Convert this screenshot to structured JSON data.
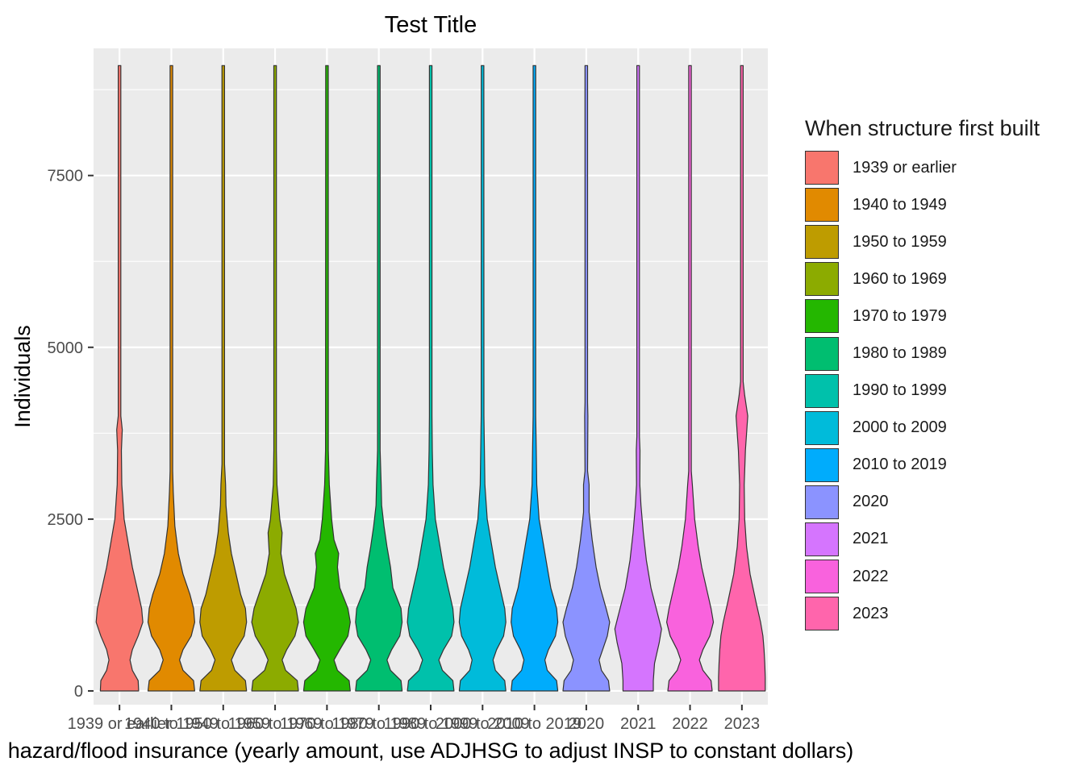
{
  "chart_data": {
    "type": "violin",
    "title": "Test Title",
    "xlabel": "hazard/flood insurance (yearly amount, use ADJHSG to adjust INSP to constant dollars)",
    "ylabel": "Individuals",
    "ylim": [
      -200,
      9350
    ],
    "yticks": [
      0,
      2500,
      5000,
      7500
    ],
    "legend_title": "When structure first built",
    "legend_position": "right",
    "grid": true,
    "categories": [
      "1939 or earlier",
      "1940 to 1949",
      "1950 to 1959",
      "1960 to 1969",
      "1970 to 1979",
      "1980 to 1989",
      "1990 to 1999",
      "2000 to 2009",
      "2010 to 2019",
      "2020",
      "2021",
      "2022",
      "2023"
    ],
    "colors": [
      "#F8766D",
      "#E18A00",
      "#BE9C00",
      "#8CAB00",
      "#24B700",
      "#00BE70",
      "#00C1AB",
      "#00BBDA",
      "#00ACFC",
      "#8B93FF",
      "#D575FE",
      "#F962DD",
      "#FF65AC"
    ],
    "y_max": 9100,
    "density_profiles": [
      [
        [
          0,
          0.82
        ],
        [
          150,
          0.8
        ],
        [
          300,
          0.55
        ],
        [
          450,
          0.45
        ],
        [
          600,
          0.55
        ],
        [
          800,
          0.8
        ],
        [
          1000,
          1
        ],
        [
          1200,
          0.95
        ],
        [
          1500,
          0.75
        ],
        [
          1800,
          0.55
        ],
        [
          2100,
          0.4
        ],
        [
          2500,
          0.2
        ],
        [
          3000,
          0.1
        ],
        [
          3500,
          0.08
        ],
        [
          3800,
          0.12
        ],
        [
          4000,
          0.03
        ],
        [
          5000,
          0.05
        ],
        [
          5200,
          0.02
        ],
        [
          9100,
          0.02
        ]
      ],
      [
        [
          0,
          1
        ],
        [
          150,
          0.95
        ],
        [
          300,
          0.5
        ],
        [
          450,
          0.35
        ],
        [
          600,
          0.5
        ],
        [
          800,
          0.85
        ],
        [
          1000,
          1
        ],
        [
          1200,
          0.95
        ],
        [
          1400,
          0.8
        ],
        [
          1700,
          0.5
        ],
        [
          2000,
          0.3
        ],
        [
          2400,
          0.15
        ],
        [
          2900,
          0.08
        ],
        [
          3200,
          0.02
        ],
        [
          9100,
          0.02
        ]
      ],
      [
        [
          0,
          1
        ],
        [
          150,
          0.95
        ],
        [
          300,
          0.5
        ],
        [
          450,
          0.35
        ],
        [
          600,
          0.55
        ],
        [
          800,
          0.9
        ],
        [
          1000,
          1
        ],
        [
          1200,
          0.95
        ],
        [
          1400,
          0.75
        ],
        [
          1700,
          0.55
        ],
        [
          2000,
          0.35
        ],
        [
          2300,
          0.22
        ],
        [
          2700,
          0.12
        ],
        [
          3000,
          0.1
        ],
        [
          3300,
          0.04
        ],
        [
          9100,
          0.02
        ]
      ],
      [
        [
          0,
          1
        ],
        [
          150,
          0.95
        ],
        [
          300,
          0.45
        ],
        [
          450,
          0.3
        ],
        [
          600,
          0.5
        ],
        [
          800,
          0.85
        ],
        [
          1000,
          1
        ],
        [
          1200,
          0.9
        ],
        [
          1400,
          0.7
        ],
        [
          1700,
          0.4
        ],
        [
          2000,
          0.25
        ],
        [
          2300,
          0.3
        ],
        [
          2500,
          0.2
        ],
        [
          3000,
          0.08
        ],
        [
          3500,
          0.05
        ],
        [
          9100,
          0.02
        ]
      ],
      [
        [
          0,
          1
        ],
        [
          150,
          0.95
        ],
        [
          300,
          0.45
        ],
        [
          450,
          0.3
        ],
        [
          600,
          0.55
        ],
        [
          800,
          0.9
        ],
        [
          1000,
          1
        ],
        [
          1200,
          0.9
        ],
        [
          1500,
          0.55
        ],
        [
          1800,
          0.45
        ],
        [
          2000,
          0.5
        ],
        [
          2200,
          0.3
        ],
        [
          2500,
          0.2
        ],
        [
          3000,
          0.1
        ],
        [
          3500,
          0.06
        ],
        [
          9100,
          0.02
        ]
      ],
      [
        [
          0,
          1
        ],
        [
          150,
          0.95
        ],
        [
          300,
          0.5
        ],
        [
          450,
          0.35
        ],
        [
          600,
          0.55
        ],
        [
          800,
          0.9
        ],
        [
          1000,
          1
        ],
        [
          1200,
          0.95
        ],
        [
          1500,
          0.6
        ],
        [
          1800,
          0.5
        ],
        [
          2100,
          0.35
        ],
        [
          2400,
          0.22
        ],
        [
          2700,
          0.12
        ],
        [
          3000,
          0.1
        ],
        [
          3500,
          0.05
        ],
        [
          9100,
          0.02
        ]
      ],
      [
        [
          0,
          1
        ],
        [
          150,
          0.95
        ],
        [
          300,
          0.5
        ],
        [
          450,
          0.35
        ],
        [
          600,
          0.55
        ],
        [
          800,
          0.9
        ],
        [
          1000,
          1
        ],
        [
          1200,
          0.95
        ],
        [
          1500,
          0.75
        ],
        [
          1800,
          0.55
        ],
        [
          2100,
          0.4
        ],
        [
          2500,
          0.2
        ],
        [
          3000,
          0.1
        ],
        [
          3500,
          0.07
        ],
        [
          4000,
          0.05
        ],
        [
          9100,
          0.03
        ]
      ],
      [
        [
          0,
          1
        ],
        [
          150,
          0.95
        ],
        [
          300,
          0.55
        ],
        [
          450,
          0.45
        ],
        [
          600,
          0.6
        ],
        [
          800,
          0.9
        ],
        [
          1000,
          1
        ],
        [
          1200,
          0.95
        ],
        [
          1500,
          0.75
        ],
        [
          1800,
          0.55
        ],
        [
          2100,
          0.4
        ],
        [
          2500,
          0.2
        ],
        [
          3000,
          0.1
        ],
        [
          3500,
          0.08
        ],
        [
          4000,
          0.06
        ],
        [
          9100,
          0.03
        ]
      ],
      [
        [
          0,
          1
        ],
        [
          150,
          0.95
        ],
        [
          300,
          0.55
        ],
        [
          450,
          0.45
        ],
        [
          600,
          0.6
        ],
        [
          800,
          0.9
        ],
        [
          1000,
          1
        ],
        [
          1200,
          0.95
        ],
        [
          1500,
          0.7
        ],
        [
          1800,
          0.55
        ],
        [
          2100,
          0.4
        ],
        [
          2500,
          0.2
        ],
        [
          3000,
          0.1
        ],
        [
          3500,
          0.08
        ],
        [
          4000,
          0.05
        ],
        [
          9100,
          0.03
        ]
      ],
      [
        [
          0,
          1
        ],
        [
          150,
          0.95
        ],
        [
          300,
          0.65
        ],
        [
          450,
          0.55
        ],
        [
          600,
          0.7
        ],
        [
          800,
          0.9
        ],
        [
          1000,
          1
        ],
        [
          1200,
          0.85
        ],
        [
          1500,
          0.6
        ],
        [
          1800,
          0.42
        ],
        [
          2200,
          0.25
        ],
        [
          2600,
          0.12
        ],
        [
          3000,
          0.12
        ],
        [
          3200,
          0.05
        ],
        [
          4000,
          0.07
        ],
        [
          4200,
          0.02
        ],
        [
          9100,
          0.02
        ]
      ],
      [
        [
          0,
          0.65
        ],
        [
          150,
          0.65
        ],
        [
          400,
          0.7
        ],
        [
          700,
          0.9
        ],
        [
          900,
          1
        ],
        [
          1100,
          0.85
        ],
        [
          1500,
          0.55
        ],
        [
          1900,
          0.35
        ],
        [
          2300,
          0.22
        ],
        [
          2700,
          0.12
        ],
        [
          3000,
          0.07
        ],
        [
          3500,
          0.08
        ],
        [
          3700,
          0.02
        ],
        [
          9100,
          0.02
        ]
      ],
      [
        [
          0,
          0.95
        ],
        [
          150,
          0.9
        ],
        [
          300,
          0.55
        ],
        [
          450,
          0.4
        ],
        [
          600,
          0.55
        ],
        [
          800,
          0.85
        ],
        [
          1000,
          1
        ],
        [
          1200,
          0.9
        ],
        [
          1500,
          0.7
        ],
        [
          1800,
          0.5
        ],
        [
          2100,
          0.35
        ],
        [
          2500,
          0.2
        ],
        [
          3000,
          0.1
        ],
        [
          3200,
          0.03
        ],
        [
          9100,
          0.02
        ]
      ],
      [
        [
          0,
          1
        ],
        [
          200,
          1
        ],
        [
          400,
          0.98
        ],
        [
          600,
          0.95
        ],
        [
          800,
          0.9
        ],
        [
          1000,
          0.8
        ],
        [
          1300,
          0.6
        ],
        [
          1700,
          0.35
        ],
        [
          2100,
          0.2
        ],
        [
          2500,
          0.12
        ],
        [
          3000,
          0.1
        ],
        [
          3500,
          0.15
        ],
        [
          4000,
          0.25
        ],
        [
          4300,
          0.12
        ],
        [
          4500,
          0.05
        ],
        [
          9100,
          0.02
        ]
      ]
    ]
  }
}
